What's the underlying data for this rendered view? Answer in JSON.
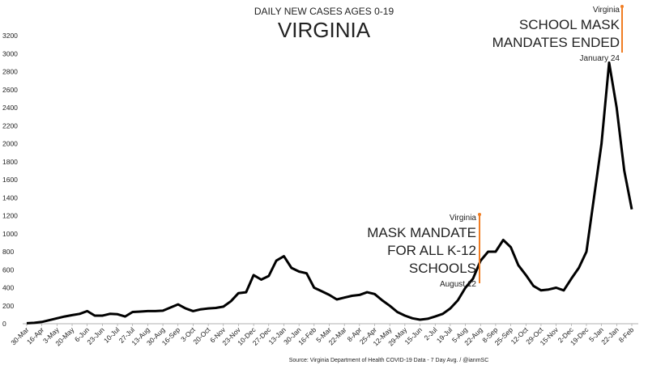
{
  "chart_data": {
    "type": "line",
    "title": "DAILY NEW CASES AGES 0-19",
    "subtitle": "VIRGINIA",
    "source": "Source: Virginia Department of Health COVID-19 Data - 7 Day Avg. / @ianmSC",
    "categories": [
      "30-Mar",
      null,
      "16-Apr",
      null,
      "3-May",
      null,
      "20-May",
      null,
      "6-Jun",
      null,
      "23-Jun",
      null,
      "10-Jul",
      null,
      "27-Jul",
      null,
      "13-Aug",
      null,
      "30-Aug",
      null,
      "16-Sep",
      null,
      "3-Oct",
      null,
      "20-Oct",
      null,
      "6-Nov",
      null,
      "23-Nov",
      null,
      "10-Dec",
      null,
      "27-Dec",
      null,
      "13-Jan",
      null,
      "30-Jan",
      null,
      "16-Feb",
      null,
      "5-Mar",
      null,
      "22-Mar",
      null,
      "8-Apr",
      null,
      "25-Apr",
      null,
      "12-May",
      null,
      "29-May",
      null,
      "15-Jun",
      null,
      "2-Jul",
      null,
      "19-Jul",
      null,
      "5-Aug",
      null,
      "22-Aug",
      null,
      "8-Sep",
      null,
      "25-Sep",
      null,
      "12-Oct",
      null,
      "29-Oct",
      null,
      "15-Nov",
      null,
      "2-Dec",
      null,
      "19-Dec",
      null,
      "5-Jan",
      null,
      "22-Jan",
      null,
      "8-Feb"
    ],
    "series": [
      {
        "name": "7 Day Avg.",
        "color": "#000000",
        "values": [
          5,
          10,
          20,
          40,
          60,
          80,
          95,
          110,
          140,
          90,
          90,
          110,
          105,
          80,
          130,
          135,
          140,
          140,
          145,
          180,
          215,
          170,
          140,
          160,
          170,
          175,
          190,
          250,
          340,
          350,
          540,
          490,
          530,
          700,
          750,
          620,
          580,
          560,
          400,
          360,
          320,
          270,
          290,
          310,
          320,
          350,
          330,
          260,
          200,
          130,
          90,
          60,
          45,
          55,
          80,
          110,
          170,
          260,
          400,
          500,
          700,
          800,
          800,
          930,
          850,
          650,
          540,
          420,
          370,
          380,
          400,
          370,
          500,
          620,
          800,
          1400,
          2000,
          2900,
          2400,
          1700,
          1270
        ]
      }
    ],
    "ylim": [
      0,
      3200
    ],
    "yticks": [
      0,
      200,
      400,
      600,
      800,
      1000,
      1200,
      1400,
      1600,
      1800,
      2000,
      2200,
      2400,
      2600,
      2800,
      3000,
      3200
    ],
    "grid": false,
    "annotations": [
      {
        "place": "Virginia",
        "lines": [
          "MASK MANDATE",
          "FOR ALL K-12",
          "SCHOOLS"
        ],
        "date": "August 12"
      },
      {
        "place": "Virginia",
        "lines": [
          "SCHOOL MASK",
          "MANDATES ENDED"
        ],
        "date": "January 24"
      }
    ]
  }
}
